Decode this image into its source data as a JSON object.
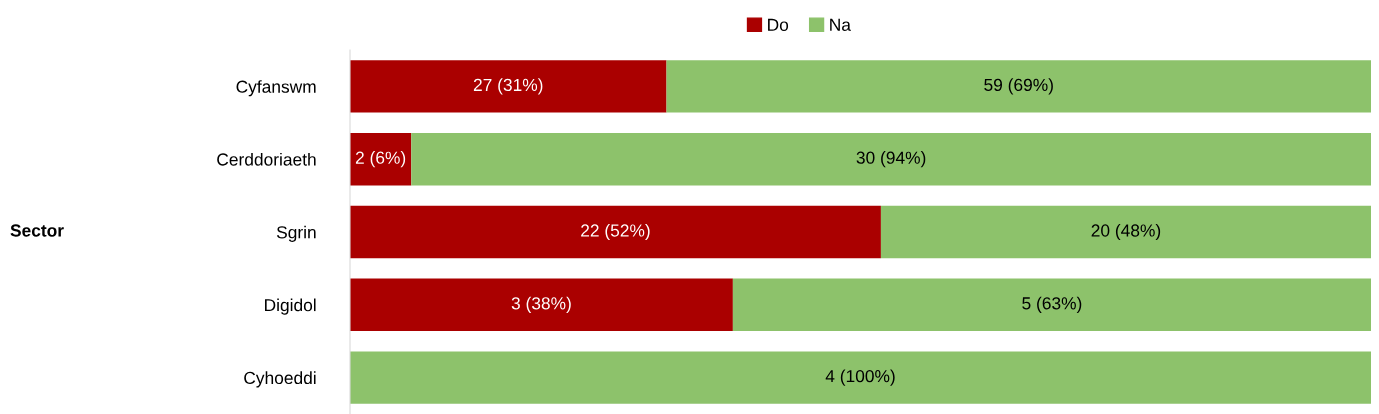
{
  "chart_data": {
    "type": "bar",
    "orientation": "horizontal",
    "stacked": true,
    "annotations": [
      "Sector"
    ],
    "categories": [
      "Cyfanswm",
      "Cerddoriaeth",
      "Sgrin",
      "Digidol",
      "Cyhoeddi"
    ],
    "series": [
      {
        "name": "Do",
        "color": "#aa0000",
        "values": [
          31,
          6,
          52,
          37.5,
          0
        ],
        "value_labels": [
          "27 (31%)",
          "2 (6%)",
          "22 (52%)",
          "3 (38%)",
          null
        ]
      },
      {
        "name": "Na",
        "color": "#8dc26b",
        "values": [
          69,
          94,
          48,
          62.5,
          100
        ],
        "value_labels": [
          "59 (69%)",
          "30 (94%)",
          "20 (48%)",
          "5 (63%)",
          "4 (100%)"
        ]
      }
    ],
    "legend": "top",
    "grid": false
  }
}
